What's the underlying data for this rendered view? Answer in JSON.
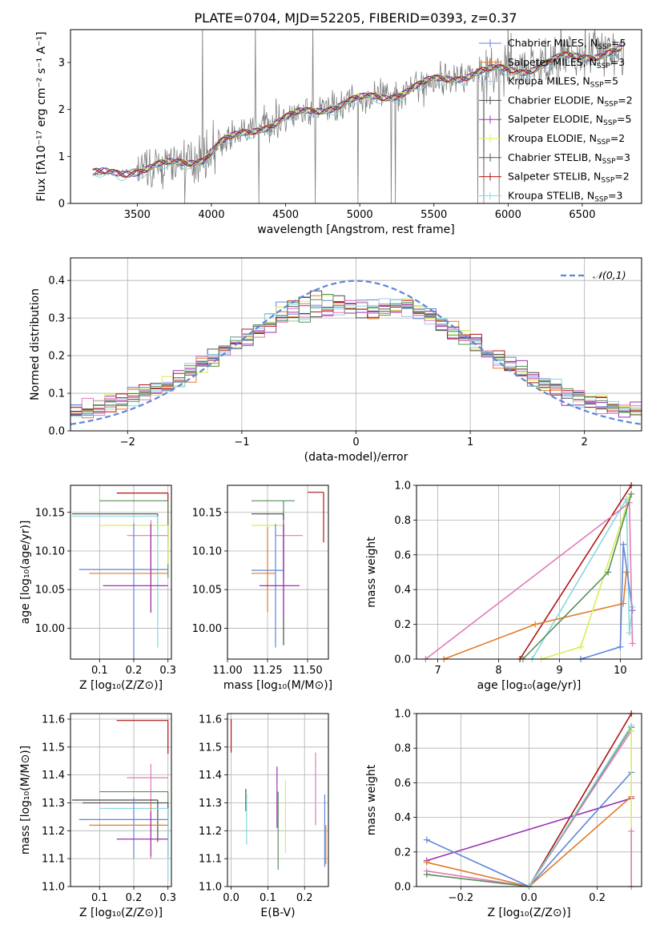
{
  "title": "PLATE=0704, MJD=52205, FIBERID=0393, z=0.37",
  "colors": {
    "data": "#808080",
    "models": [
      "#5f86d9",
      "#e07b2b",
      "#aac6f2",
      "#4a4a4a",
      "#9b30b5",
      "#d4ef58",
      "#555555",
      "#b01414",
      "#88d8e0"
    ],
    "extra": [
      "#e07bb8",
      "#5a8f5a"
    ]
  },
  "chart_data": [
    {
      "id": "spectrum",
      "type": "line",
      "xlabel": "wavelength [Angstrom, rest frame]",
      "ylabel": "Flux [fλ10⁻¹⁷ erg cm⁻² s⁻¹ A⁻¹]",
      "xlim": [
        3050,
        6900
      ],
      "ylim": [
        0,
        3.7
      ],
      "xticks": [
        3500,
        4000,
        4500,
        5000,
        5500,
        6000,
        6500
      ],
      "yticks": [
        0,
        1,
        2,
        3
      ],
      "continuum_x": [
        3200,
        3400,
        3600,
        3800,
        3950,
        4050,
        4300,
        4600,
        4900,
        5200,
        5500,
        5800,
        6100,
        6400,
        6750
      ],
      "continuum_y": [
        0.6,
        0.68,
        0.75,
        0.88,
        0.98,
        1.25,
        1.6,
        1.9,
        2.15,
        2.3,
        2.6,
        2.8,
        2.85,
        3.1,
        3.25
      ],
      "legend": [
        "Chabrier MILES, N_SSP=5",
        "Salpeter MILES, N_SSP=3",
        "Kroupa MILES, N_SSP=5",
        "Chabrier ELODIE, N_SSP=2",
        "Salpeter ELODIE, N_SSP=5",
        "Kroupa ELODIE, N_SSP=2",
        "Chabrier STELIB, N_SSP=3",
        "Salpeter STELIB, N_SSP=2",
        "Kroupa STELIB, N_SSP=3"
      ],
      "grid": false
    },
    {
      "id": "residuals",
      "type": "line",
      "xlabel": "(data-model)/error",
      "ylabel": "Normed distribution",
      "xlim": [
        -2.5,
        2.5
      ],
      "ylim": [
        0,
        0.46
      ],
      "xticks": [
        -2,
        -1,
        0,
        1,
        2
      ],
      "yticks": [
        0.0,
        0.1,
        0.2,
        0.3,
        0.4
      ],
      "reference_curve": "N(0,1)",
      "legend": [
        "𝒩(0,1)"
      ],
      "grid": true
    },
    {
      "id": "age_vs_Z",
      "type": "scatter",
      "xlabel": "Z [log₁₀(Z/Z⊙)]",
      "ylabel": "age  [log₁₀(age/yr)]",
      "xlim": [
        0.015,
        0.31
      ],
      "ylim": [
        9.96,
        10.185
      ],
      "xticks": [
        0.1,
        0.2,
        0.3
      ],
      "yticks": [
        10.0,
        10.05,
        10.1,
        10.15
      ],
      "points": [
        {
          "x": 0.3,
          "y": 10.175,
          "xerr": [
            0.15,
            0.0
          ],
          "yerr": [
            0.062,
            0.0
          ]
        },
        {
          "x": 0.3,
          "y": 10.165,
          "xerr": [
            0.2,
            0.0
          ],
          "yerr": [
            0.1,
            0.0
          ]
        },
        {
          "x": 0.27,
          "y": 10.148,
          "xerr": [
            0.25,
            0.0
          ],
          "yerr": [
            0.02,
            0.0
          ]
        },
        {
          "x": 0.27,
          "y": 10.145,
          "xerr": [
            0.25,
            0.0
          ],
          "yerr": [
            0.17,
            0.0
          ]
        },
        {
          "x": 0.3,
          "y": 10.133,
          "xerr": [
            0.2,
            0.0
          ],
          "yerr": [
            0.05,
            0.0
          ]
        },
        {
          "x": 0.25,
          "y": 10.12,
          "xerr": [
            0.07,
            0.05
          ],
          "yerr": [
            0.04,
            0.02
          ]
        },
        {
          "x": 0.2,
          "y": 10.076,
          "xerr": [
            0.16,
            0.1
          ],
          "yerr": [
            0.116,
            0.06
          ]
        },
        {
          "x": 0.25,
          "y": 10.071,
          "xerr": [
            0.18,
            0.05
          ],
          "yerr": [
            0.05,
            0.06
          ]
        },
        {
          "x": 0.25,
          "y": 10.055,
          "xerr": [
            0.14,
            0.05
          ],
          "yerr": [
            0.035,
            0.08
          ]
        }
      ],
      "grid": true
    },
    {
      "id": "age_vs_mass",
      "type": "scatter",
      "xlabel": "mass [log₁₀(M/M⊙)]",
      "ylabel": "",
      "xlim": [
        11.0,
        11.63
      ],
      "ylim": [
        9.96,
        10.185
      ],
      "xticks": [
        11.0,
        11.25,
        11.5
      ],
      "yticks": [
        10.0,
        10.05,
        10.1,
        10.15
      ],
      "points": [
        {
          "x": 11.6,
          "y": 10.176,
          "xerr": [
            0.1,
            0.0
          ],
          "yerr": [
            0.065,
            0.0
          ]
        },
        {
          "x": 11.35,
          "y": 10.165,
          "xerr": [
            0.2,
            0.07
          ],
          "yerr": [
            0.1,
            0.0
          ]
        },
        {
          "x": 11.35,
          "y": 10.148,
          "xerr": [
            0.2,
            0.0
          ],
          "yerr": [
            0.17,
            0.0
          ]
        },
        {
          "x": 11.35,
          "y": 10.133,
          "xerr": [
            0.2,
            0.0
          ],
          "yerr": [
            0.05,
            0.0
          ]
        },
        {
          "x": 11.35,
          "y": 10.12,
          "xerr": [
            0.05,
            0.12
          ],
          "yerr": [
            0.04,
            0.02
          ]
        },
        {
          "x": 11.3,
          "y": 10.075,
          "xerr": [
            0.15,
            0.05
          ],
          "yerr": [
            0.1,
            0.06
          ]
        },
        {
          "x": 11.25,
          "y": 10.071,
          "xerr": [
            0.1,
            0.05
          ],
          "yerr": [
            0.05,
            0.06
          ]
        },
        {
          "x": 11.35,
          "y": 10.055,
          "xerr": [
            0.15,
            0.1
          ],
          "yerr": [
            0.04,
            0.08
          ]
        }
      ],
      "grid": true
    },
    {
      "id": "weight_vs_age",
      "type": "line",
      "xlabel": "age  [log₁₀(age/yr)]",
      "ylabel": "mass weight",
      "xlim": [
        6.65,
        10.35
      ],
      "ylim": [
        0,
        1.0
      ],
      "xticks": [
        7,
        8,
        9,
        10
      ],
      "yticks": [
        0.0,
        0.2,
        0.4,
        0.6,
        0.8,
        1.0
      ],
      "series": [
        {
          "x": [
            8.35,
            10.18
          ],
          "y": [
            0.0,
            1.0
          ]
        },
        {
          "x": [
            8.55,
            10.1,
            10.15,
            10.2
          ],
          "y": [
            0.0,
            0.92,
            0.15,
            0.3
          ]
        },
        {
          "x": [
            7.1,
            8.6,
            10.05,
            10.1
          ],
          "y": [
            0.0,
            0.2,
            0.32,
            0.5
          ]
        },
        {
          "x": [
            9.35,
            10.0,
            10.05,
            10.2
          ],
          "y": [
            0.0,
            0.07,
            0.66,
            0.28
          ]
        },
        {
          "x": [
            8.7,
            9.35,
            10.15
          ],
          "y": [
            0.0,
            0.07,
            0.93
          ]
        },
        {
          "x": [
            6.8,
            10.15,
            10.2
          ],
          "y": [
            0.0,
            0.9,
            0.09
          ]
        },
        {
          "x": [
            8.4,
            9.8,
            10.18
          ],
          "y": [
            0.0,
            0.5,
            0.95
          ]
        }
      ],
      "grid": true
    },
    {
      "id": "mass_vs_Z",
      "type": "scatter",
      "xlabel": "Z [log₁₀(Z/Z⊙)]",
      "ylabel": "mass [log₁₀(M/M⊙)]",
      "xlim": [
        0.015,
        0.31
      ],
      "ylim": [
        11.0,
        11.62
      ],
      "xticks": [
        0.1,
        0.2,
        0.3
      ],
      "yticks": [
        11.0,
        11.1,
        11.2,
        11.3,
        11.4,
        11.5,
        11.6
      ],
      "points": [
        {
          "x": 0.3,
          "y": 11.595,
          "xerr": [
            0.15,
            0.0
          ],
          "yerr": [
            0.12,
            0.0
          ]
        },
        {
          "x": 0.25,
          "y": 11.39,
          "xerr": [
            0.07,
            0.05
          ],
          "yerr": [
            0.1,
            0.05
          ]
        },
        {
          "x": 0.3,
          "y": 11.34,
          "xerr": [
            0.2,
            0.0
          ],
          "yerr": [
            0.1,
            0.0
          ]
        },
        {
          "x": 0.27,
          "y": 11.31,
          "xerr": [
            0.25,
            0.0
          ],
          "yerr": [
            0.15,
            0.0
          ]
        },
        {
          "x": 0.3,
          "y": 11.3,
          "xerr": [
            0.25,
            0.0
          ],
          "yerr": [
            0.2,
            0.0
          ]
        },
        {
          "x": 0.3,
          "y": 11.28,
          "xerr": [
            0.2,
            0.0
          ],
          "yerr": [
            0.26,
            0.0
          ]
        },
        {
          "x": 0.2,
          "y": 11.24,
          "xerr": [
            0.16,
            0.1
          ],
          "yerr": [
            0.14,
            0.08
          ]
        },
        {
          "x": 0.25,
          "y": 11.22,
          "xerr": [
            0.18,
            0.05
          ],
          "yerr": [
            0.12,
            0.08
          ]
        },
        {
          "x": 0.25,
          "y": 11.17,
          "xerr": [
            0.1,
            0.05
          ],
          "yerr": [
            0.06,
            0.1
          ]
        }
      ],
      "grid": true
    },
    {
      "id": "mass_vs_ebv",
      "type": "scatter",
      "xlabel": "E(B-V)",
      "ylabel": "",
      "xlim": [
        -0.01,
        0.265
      ],
      "ylim": [
        11.0,
        11.62
      ],
      "xticks": [
        0.0,
        0.1,
        0.2
      ],
      "yticks": [
        11.0,
        11.1,
        11.2,
        11.3,
        11.4,
        11.5,
        11.6
      ],
      "points": [
        {
          "x": 0.0,
          "y": 11.54,
          "yerr": [
            0.06,
            0.06
          ]
        },
        {
          "x": 0.04,
          "y": 11.31,
          "yerr": [
            0.04,
            0.04
          ]
        },
        {
          "x": 0.042,
          "y": 11.24,
          "yerr": [
            0.09,
            0.09
          ]
        },
        {
          "x": 0.125,
          "y": 11.32,
          "yerr": [
            0.11,
            0.11
          ]
        },
        {
          "x": 0.128,
          "y": 11.2,
          "yerr": [
            0.14,
            0.14
          ]
        },
        {
          "x": 0.148,
          "y": 11.25,
          "yerr": [
            0.13,
            0.13
          ]
        },
        {
          "x": 0.23,
          "y": 11.35,
          "yerr": [
            0.13,
            0.13
          ]
        },
        {
          "x": 0.255,
          "y": 11.2,
          "yerr": [
            0.13,
            0.13
          ]
        },
        {
          "x": 0.258,
          "y": 11.15,
          "yerr": [
            0.07,
            0.07
          ]
        }
      ],
      "grid": true
    },
    {
      "id": "weight_vs_Z",
      "type": "line",
      "xlabel": "Z [log₁₀(Z/Z⊙)]",
      "ylabel": "mass weight",
      "xlim": [
        -0.33,
        0.33
      ],
      "ylim": [
        0,
        1.0
      ],
      "xticks": [
        -0.2,
        0.0,
        0.2
      ],
      "yticks": [
        0.0,
        0.2,
        0.4,
        0.6,
        0.8,
        1.0
      ],
      "series": [
        {
          "x": [
            0.0,
            0.3
          ],
          "y": [
            0.0,
            1.0
          ]
        },
        {
          "x": [
            -0.3,
            0.3
          ],
          "y": [
            0.15,
            0.51
          ]
        },
        {
          "x": [
            -0.3,
            0.0,
            0.3
          ],
          "y": [
            0.27,
            0.0,
            0.66
          ]
        },
        {
          "x": [
            -0.3,
            0.0,
            0.3
          ],
          "y": [
            0.14,
            0.0,
            0.52
          ]
        },
        {
          "x": [
            -0.3,
            0.0,
            0.3
          ],
          "y": [
            0.09,
            0.0,
            0.9
          ]
        },
        {
          "x": [
            -0.3,
            0.0,
            0.3
          ],
          "y": [
            0.07,
            0.0,
            0.92
          ]
        },
        {
          "x": [
            0.0,
            0.3
          ],
          "y": [
            0.0,
            0.93
          ]
        },
        {
          "x": [
            0.3,
            0.3
          ],
          "y": [
            0.0,
            0.9
          ]
        },
        {
          "x": [
            0.3,
            0.3
          ],
          "y": [
            0.0,
            0.32
          ]
        }
      ],
      "grid": true
    }
  ]
}
